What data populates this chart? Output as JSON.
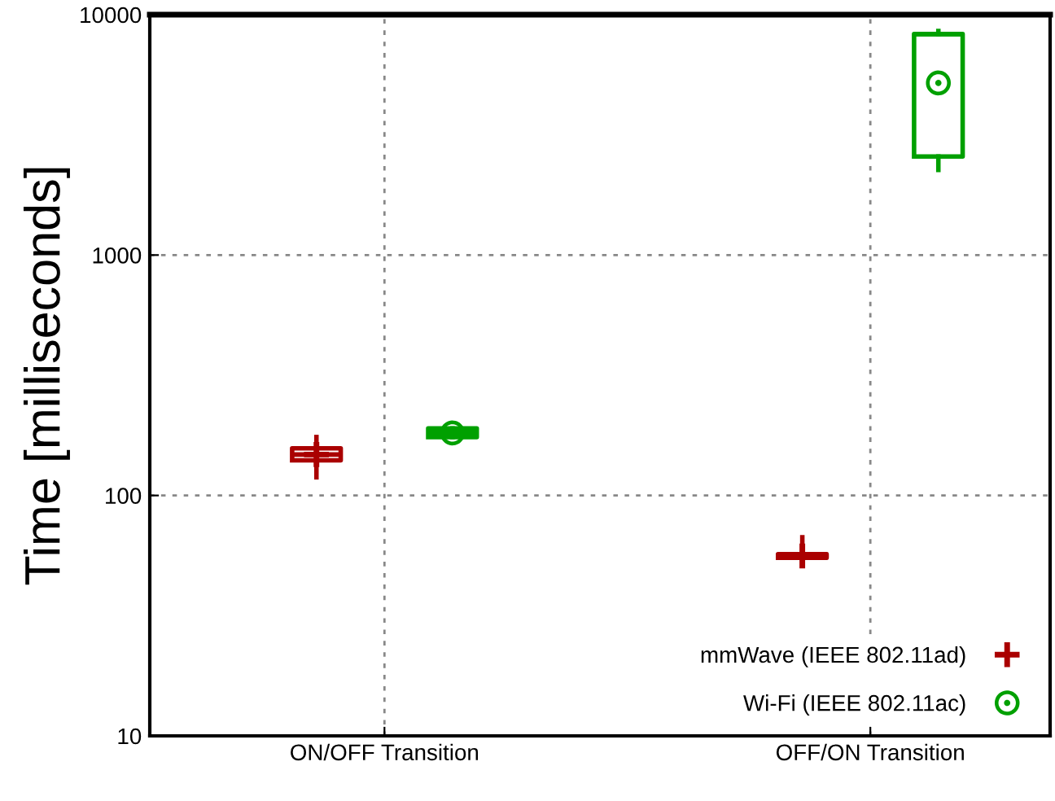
{
  "chart_data": {
    "type": "box",
    "ylabel": "Time [milliseconds]",
    "categories": [
      "ON/OFF Transition",
      "OFF/ON Transition"
    ],
    "log": "y",
    "ylim": [
      10,
      10000
    ],
    "yticks": [
      10,
      100,
      1000,
      10000
    ],
    "grid": true,
    "legend": "bottom right",
    "series": [
      {
        "name": "mmWave (IEEE 802.11ad)",
        "color": "#aa0000",
        "marker": "cross",
        "boxes": [
          {
            "low": 119,
            "q1": 140,
            "median": 148,
            "q3": 157,
            "high": 175,
            "mean": 148
          },
          {
            "low": 51,
            "q1": 55,
            "median": 56,
            "q3": 57,
            "high": 67,
            "mean": 56
          }
        ]
      },
      {
        "name": "Wi-Fi (IEEE 802.11ac)",
        "color": "#00a000",
        "marker": "circle",
        "boxes": [
          {
            "low": 175,
            "q1": 175,
            "median": 182,
            "q3": 190,
            "high": 190,
            "mean": 182
          },
          {
            "low": 2260,
            "q1": 2570,
            "median": 8300,
            "q3": 8300,
            "high": 8550,
            "mean": 5200
          }
        ]
      }
    ]
  }
}
